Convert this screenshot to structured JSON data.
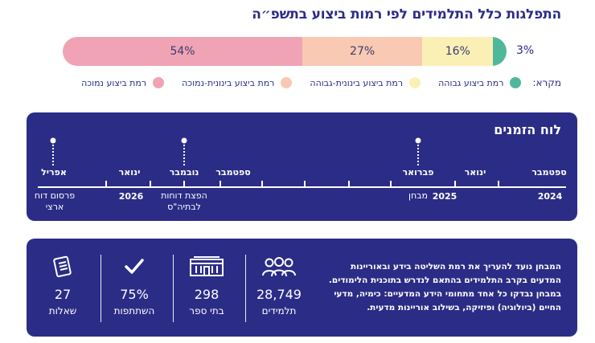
{
  "title": "התפלגות כלל התלמידים לפי רמות ביצוע בתשפ״ה",
  "chart_data": {
    "type": "bar",
    "categories": [
      "רמת ביצוע נמוכה",
      "רמת ביצוע בינונית-נמוכה",
      "רמת ביצוע בינונית-גבוהה",
      "רמת ביצוע גבוהה"
    ],
    "values": [
      54,
      27,
      16,
      3
    ],
    "value_labels": [
      "54%",
      "27%",
      "16%",
      "3%"
    ],
    "colors": [
      "#f0a3b4",
      "#f9c9b3",
      "#faf0b6",
      "#4fb89a"
    ]
  },
  "legend": {
    "title": "מקרא:",
    "items": [
      {
        "label": "רמת ביצוע גבוהה",
        "color": "#4fb89a"
      },
      {
        "label": "רמת ביצוע בינונית-גבוהה",
        "color": "#faf0b6"
      },
      {
        "label": "רמת ביצוע בינונית-נמוכה",
        "color": "#f9c9b3"
      },
      {
        "label": "רמת ביצוע נמוכה",
        "color": "#f0a3b4"
      }
    ]
  },
  "timeline": {
    "title": "לוח הזמנים",
    "months": [
      "ספטמבר",
      "ינואר",
      "פברואר",
      "ספטמבר",
      "נובמבר",
      "ינואר",
      "אפריל"
    ],
    "years": [
      "2024",
      "2025",
      "2026"
    ],
    "events": [
      {
        "label": "מבחן"
      },
      {
        "label": "הפצת דוחות לבתיה\"ס"
      },
      {
        "label": "פרסום דוח ארצי"
      }
    ]
  },
  "stats": {
    "description": "המבחן נועד להעריך את רמת השליטה בידע ובאוריינות המדעים בקרב התלמידים בהתאם לנדרש בתוכנית הלימודים. במבחן נבדקו כל אחד מתחומי הידע המדעיים: כימיה, מדעי החיים (ביולוגיה) ופיזיקה, בשילוב אוריינות מדעית.",
    "items": [
      {
        "value": "28,749",
        "label": "תלמידים",
        "icon": "students-icon"
      },
      {
        "value": "298",
        "label": "בתי ספר",
        "icon": "school-icon"
      },
      {
        "value": "75%",
        "label": "השתתפות",
        "icon": "checkmark-icon"
      },
      {
        "value": "27",
        "label": "שאלות",
        "icon": "questions-icon"
      }
    ]
  }
}
